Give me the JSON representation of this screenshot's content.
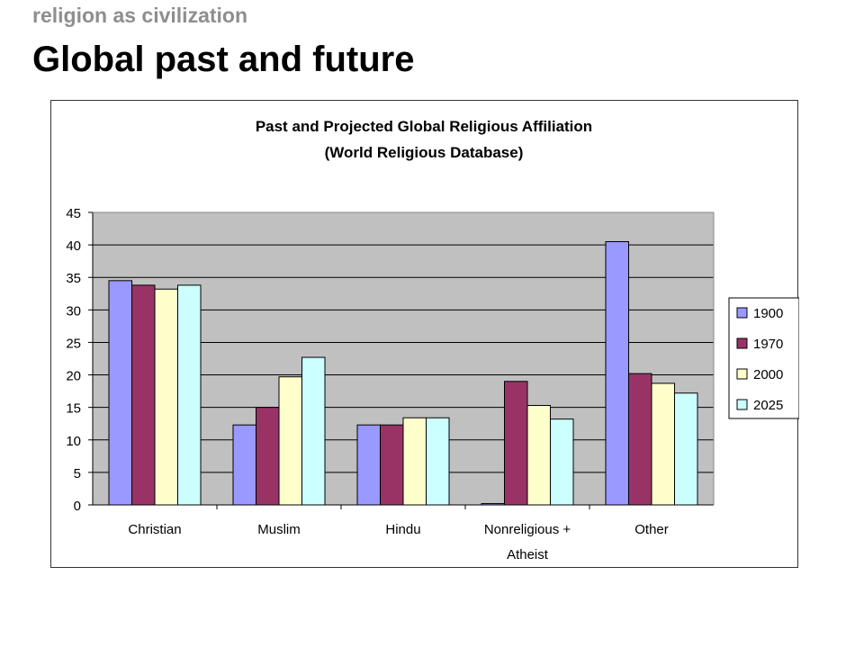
{
  "slide": {
    "kicker": "religion as civilization",
    "title": "Global past and future"
  },
  "chart_data": {
    "type": "bar",
    "title": "Past and Projected Global Religious Affiliation",
    "subtitle": "(World Religious Database)",
    "categories": [
      "Christian",
      "Muslim",
      "Hindu",
      "Nonreligious + Atheist",
      "Other"
    ],
    "category_lines": [
      [
        "Christian"
      ],
      [
        "Muslim"
      ],
      [
        "Hindu"
      ],
      [
        "Nonreligious +",
        "Atheist"
      ],
      [
        "Other"
      ]
    ],
    "series": [
      {
        "name": "1900",
        "color": "#9999ff",
        "values": [
          34.5,
          12.3,
          12.3,
          0.2,
          40.5
        ]
      },
      {
        "name": "1970",
        "color": "#993366",
        "values": [
          33.8,
          15.0,
          12.3,
          19.0,
          20.2
        ]
      },
      {
        "name": "2000",
        "color": "#ffffcc",
        "values": [
          33.2,
          19.7,
          13.4,
          15.3,
          18.7
        ]
      },
      {
        "name": "2025",
        "color": "#ccffff",
        "values": [
          33.8,
          22.7,
          13.4,
          13.2,
          17.2
        ]
      }
    ],
    "ylim": [
      0,
      45
    ],
    "yticks": [
      0,
      5,
      10,
      15,
      20,
      25,
      30,
      35,
      40,
      45
    ],
    "xlabel": "",
    "ylabel": "",
    "grid": true,
    "plot_background": "#c0c0c0",
    "legend": "right"
  }
}
